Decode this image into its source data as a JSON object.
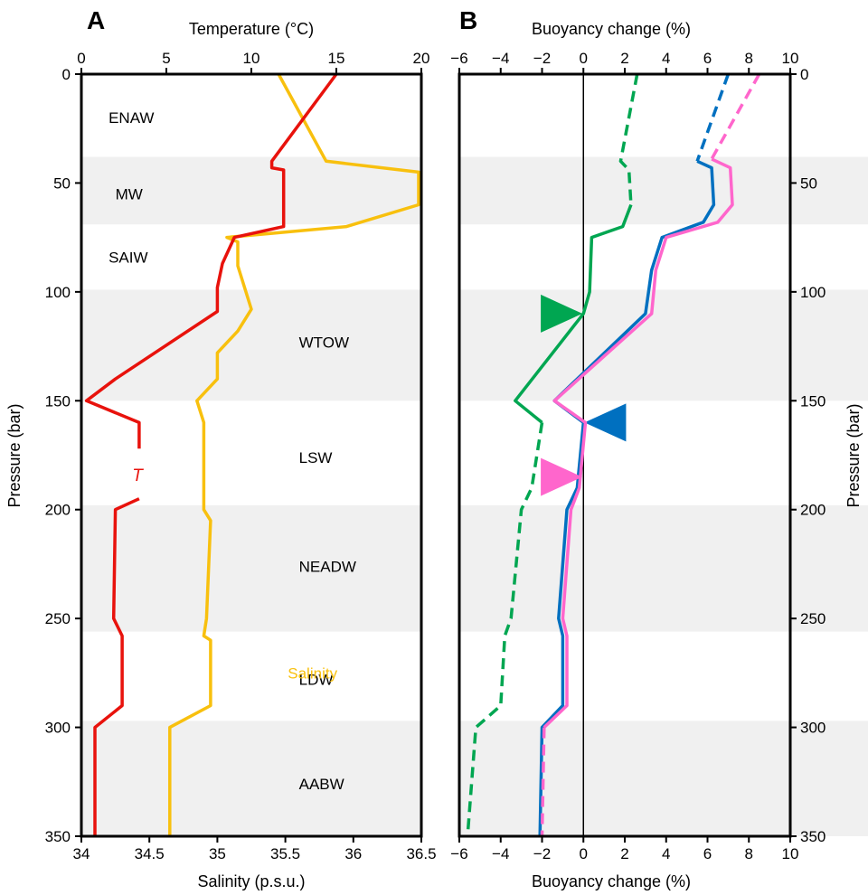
{
  "chart_data": [
    {
      "type": "line",
      "panel_label": "A",
      "top_axis": {
        "label": "Temperature (°C)",
        "range": [
          0,
          20
        ],
        "ticks": [
          0,
          5,
          10,
          15,
          20
        ]
      },
      "bottom_axis": {
        "label": "Salinity (p.s.u.)",
        "range": [
          34,
          36.5
        ],
        "ticks": [
          "34",
          "34.5",
          "35",
          "35.5",
          "36",
          "36.5"
        ],
        "tick_values": [
          34,
          34.5,
          35,
          35.5,
          36,
          36.5
        ]
      },
      "left_axis": {
        "label": "Pressure (bar)",
        "range": [
          0,
          350
        ],
        "inverted": true,
        "ticks": [
          0,
          50,
          100,
          150,
          200,
          250,
          300,
          350
        ]
      },
      "water_masses": [
        {
          "name": "ENAW",
          "from": 0,
          "to": 38,
          "shaded": false,
          "label_x": 34.2,
          "label_p": 20
        },
        {
          "name": "MW",
          "from": 38,
          "to": 69,
          "shaded": true,
          "label_x": 34.25,
          "label_p": 55
        },
        {
          "name": "SAIW",
          "from": 69,
          "to": 99,
          "shaded": false,
          "label_x": 34.2,
          "label_p": 84
        },
        {
          "name": "WTOW",
          "from": 99,
          "to": 150,
          "shaded": true,
          "label_x": 35.6,
          "label_p": 123
        },
        {
          "name": "LSW",
          "from": 150,
          "to": 198,
          "shaded": false,
          "label_x": 35.6,
          "label_p": 176
        },
        {
          "name": "NEADW",
          "from": 198,
          "to": 256,
          "shaded": true,
          "label_x": 35.6,
          "label_p": 226
        },
        {
          "name": "LDW",
          "from": 256,
          "to": 297,
          "shaded": false,
          "label_x": 35.6,
          "label_p": 278
        },
        {
          "name": "AABW",
          "from": 297,
          "to": 350,
          "shaded": true,
          "label_x": 35.6,
          "label_p": 326
        }
      ],
      "series": [
        {
          "name": "T",
          "axis": "temperature",
          "color": "#e8120c",
          "points": [
            [
              15.0,
              0
            ],
            [
              11.2,
              40
            ],
            [
              11.2,
              43
            ],
            [
              11.9,
              44
            ],
            [
              11.9,
              70
            ],
            [
              9.0,
              75
            ],
            [
              8.3,
              87
            ],
            [
              8.0,
              98
            ],
            [
              8.0,
              109
            ],
            [
              2.0,
              140
            ],
            [
              0.3,
              150
            ],
            [
              3.4,
              160
            ],
            [
              3.4,
              172
            ]
          ],
          "points_b": [
            [
              3.4,
              195
            ],
            [
              2.0,
              200
            ],
            [
              1.9,
              250
            ],
            [
              2.4,
              258
            ],
            [
              2.4,
              290
            ],
            [
              0.8,
              300
            ],
            [
              0.8,
              350
            ]
          ],
          "label_value": 3.3,
          "label_p": 184
        },
        {
          "name": "Salinity",
          "axis": "salinity",
          "color": "#f8c00e",
          "points": [
            [
              35.45,
              0
            ],
            [
              35.8,
              40
            ],
            [
              36.48,
              45
            ],
            [
              36.48,
              60
            ],
            [
              35.95,
              70
            ],
            [
              35.07,
              75
            ],
            [
              35.15,
              77
            ],
            [
              35.15,
              88
            ],
            [
              35.25,
              108
            ],
            [
              35.15,
              118
            ],
            [
              35.0,
              128
            ],
            [
              35.0,
              140
            ],
            [
              34.85,
              150
            ],
            [
              34.9,
              160
            ],
            [
              34.9,
              200
            ],
            [
              34.95,
              205
            ],
            [
              34.92,
              250
            ],
            [
              34.9,
              258
            ],
            [
              34.95,
              260
            ],
            [
              34.95,
              290
            ],
            [
              34.65,
              300
            ],
            [
              34.65,
              350
            ]
          ],
          "label_value": 35.7,
          "label_p": 275
        }
      ]
    },
    {
      "type": "line",
      "panel_label": "B",
      "top_axis": {
        "label": "Buoyancy change (%)",
        "range": [
          -6,
          10
        ],
        "ticks": [
          "−6",
          "−4",
          "−2",
          "0",
          "2",
          "4",
          "6",
          "8",
          "10"
        ],
        "tick_values": [
          -6,
          -4,
          -2,
          0,
          2,
          4,
          6,
          8,
          10
        ]
      },
      "bottom_axis": {
        "label": "Buoyancy change (%)",
        "range": [
          -6,
          10
        ],
        "ticks": [
          "−6",
          "−4",
          "−2",
          "0",
          "2",
          "4",
          "6",
          "8",
          "10"
        ],
        "tick_values": [
          -6,
          -4,
          -2,
          0,
          2,
          4,
          6,
          8,
          10
        ]
      },
      "right_axis": {
        "label": "Pressure (bar)",
        "range": [
          0,
          350
        ],
        "inverted": true,
        "ticks": [
          0,
          50,
          100,
          150,
          200,
          250,
          300,
          350
        ]
      },
      "shaded_bands": [
        [
          38,
          69
        ],
        [
          99,
          150
        ],
        [
          198,
          256
        ],
        [
          297,
          350
        ]
      ],
      "series": [
        {
          "color": "#00a651",
          "segments": [
            {
              "style": "dashed",
              "points": [
                [
                  2.6,
                  0
                ],
                [
                  1.8,
                  40
                ],
                [
                  2.2,
                  44
                ],
                [
                  2.3,
                  60
                ]
              ]
            },
            {
              "style": "solid",
              "points": [
                [
                  2.3,
                  60
                ],
                [
                  1.9,
                  70
                ],
                [
                  0.4,
                  75
                ],
                [
                  0.3,
                  100
                ],
                [
                  0.0,
                  110
                ],
                [
                  -3.3,
                  150
                ],
                [
                  -2.0,
                  160
                ]
              ]
            },
            {
              "style": "dashed",
              "points": [
                [
                  -2.0,
                  160
                ],
                [
                  -2.5,
                  190
                ],
                [
                  -3.0,
                  200
                ],
                [
                  -3.5,
                  250
                ],
                [
                  -3.8,
                  258
                ],
                [
                  -4.0,
                  290
                ],
                [
                  -5.2,
                  300
                ],
                [
                  -5.6,
                  350
                ]
              ]
            }
          ],
          "marker": {
            "shape": "triangle-right",
            "tip_value": -0.05,
            "tip_p": 110
          }
        },
        {
          "color": "#0070c0",
          "segments": [
            {
              "style": "dashed",
              "points": [
                [
                  7.0,
                  0
                ],
                [
                  5.5,
                  40
                ]
              ]
            },
            {
              "style": "solid",
              "points": [
                [
                  5.5,
                  40
                ],
                [
                  6.2,
                  43
                ],
                [
                  6.3,
                  60
                ],
                [
                  5.8,
                  68
                ],
                [
                  3.8,
                  75
                ],
                [
                  3.3,
                  90
                ],
                [
                  3.0,
                  110
                ],
                [
                  -1.4,
                  150
                ],
                [
                  0.0,
                  160
                ],
                [
                  -0.3,
                  190
                ],
                [
                  -0.8,
                  200
                ],
                [
                  -1.2,
                  250
                ],
                [
                  -1.0,
                  258
                ],
                [
                  -1.0,
                  290
                ],
                [
                  -2.0,
                  300
                ],
                [
                  -2.1,
                  350
                ]
              ]
            }
          ],
          "marker": {
            "shape": "triangle-left",
            "tip_value": 0.05,
            "tip_p": 160
          }
        },
        {
          "color": "#ff66cc",
          "segments": [
            {
              "style": "dashed",
              "points": [
                [
                  8.5,
                  0
                ],
                [
                  6.2,
                  39
                ]
              ]
            },
            {
              "style": "solid",
              "points": [
                [
                  6.2,
                  39
                ],
                [
                  7.1,
                  43
                ],
                [
                  7.2,
                  60
                ],
                [
                  6.5,
                  68
                ],
                [
                  4.0,
                  75
                ],
                [
                  3.5,
                  90
                ],
                [
                  3.3,
                  110
                ],
                [
                  -1.4,
                  150
                ],
                [
                  0.1,
                  160
                ],
                [
                  -0.2,
                  190
                ],
                [
                  -0.6,
                  200
                ],
                [
                  -1.0,
                  250
                ],
                [
                  -0.8,
                  258
                ],
                [
                  -0.8,
                  290
                ],
                [
                  -1.9,
                  300
                ]
              ]
            },
            {
              "style": "dashed",
              "points": [
                [
                  -1.9,
                  300
                ],
                [
                  -2.0,
                  350
                ]
              ]
            }
          ],
          "marker": {
            "shape": "triangle-right",
            "tip_value": -0.05,
            "tip_p": 185
          }
        }
      ]
    }
  ]
}
